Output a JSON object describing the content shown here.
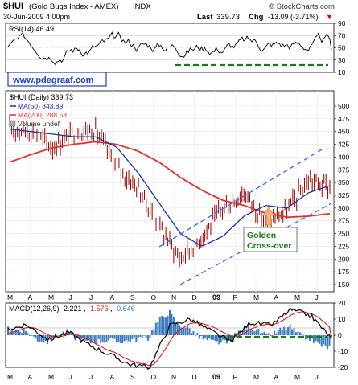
{
  "header": {
    "symbol": "$HUI",
    "name": "(Gold Bugs Index - AMEX)",
    "exchange": "INDX",
    "date": "30-Jun-2009 4:00pm",
    "brand": "© StockCharts.com",
    "last_label": "Last",
    "last_value": "339.73",
    "chg_label": "Chg",
    "chg_value": "-13.09 (-3.71%)",
    "chg_arrow": "▼"
  },
  "watermark": "www.pdegraaf.com",
  "rsi_panel": {
    "label": "RSI(14) 46.49",
    "ticks": [
      "90",
      "70",
      "50",
      "30",
      "10"
    ]
  },
  "price_panel": {
    "legend_title": "$HUI (Daily) 339.73",
    "legend_ma50": "MA(50) 343.89",
    "legend_ma200": "MA(200) 288.53",
    "legend_volume": "Volume undef",
    "ticks": [
      "500",
      "475",
      "450",
      "425",
      "400",
      "375",
      "350",
      "325",
      "300",
      "275",
      "250",
      "225",
      "200",
      "175",
      "150"
    ],
    "annotation_line1": "Golden",
    "annotation_line2": "Cross-over"
  },
  "macd_panel": {
    "label_prefix": "MACD(12,26,9)",
    "v1": "-2.221",
    "v2": "-1.576",
    "v3": "-0.646",
    "ticks": [
      "20",
      "10",
      "0",
      "-10",
      "-20"
    ]
  },
  "months": [
    "M",
    "A",
    "M",
    "J",
    "J",
    "A",
    "S",
    "O",
    "N",
    "D",
    "09",
    "F",
    "M",
    "A",
    "M",
    "J"
  ],
  "colors": {
    "price": "#8b0000",
    "ma50": "#1f2f9f",
    "ma200": "#e0302a",
    "support": "#1a7a1a",
    "channel": "#3a6ff0",
    "macd_line": "#000000",
    "signal_line": "#d81b1b",
    "histogram": "#3a7bbf",
    "panel_bg": "#ffffff",
    "watermark": "#1f3fbf"
  },
  "chart_data": [
    {
      "type": "line",
      "panel": "RSI(14)",
      "ylim": [
        10,
        90
      ],
      "last_value": 46.49,
      "reference_lines": [
        30,
        50,
        70
      ]
    },
    {
      "type": "line",
      "panel": "$HUI (Daily)",
      "ylim": [
        150,
        500
      ],
      "x": [
        "M",
        "A",
        "M",
        "J",
        "J",
        "A",
        "S",
        "O",
        "N",
        "D",
        "09",
        "F",
        "M",
        "A",
        "M",
        "J"
      ],
      "series": [
        {
          "name": "$HUI (Daily)",
          "values": [
            455,
            452,
            420,
            448,
            455,
            380,
            340,
            265,
            200,
            245,
            300,
            330,
            270,
            295,
            355,
            340
          ]
        },
        {
          "name": "MA(50)",
          "values": [
            455,
            450,
            445,
            440,
            440,
            420,
            370,
            310,
            250,
            225,
            245,
            285,
            305,
            300,
            330,
            344
          ]
        },
        {
          "name": "MA(200)",
          "values": [
            390,
            405,
            418,
            425,
            430,
            425,
            412,
            390,
            360,
            335,
            315,
            305,
            290,
            282,
            284,
            289
          ]
        }
      ],
      "last_value": 339.73
    },
    {
      "type": "line",
      "panel": "MACD(12,26,9)",
      "ylim": [
        -20,
        20
      ],
      "values": {
        "macd": -2.221,
        "signal": -1.576,
        "histogram": -0.646
      }
    }
  ]
}
